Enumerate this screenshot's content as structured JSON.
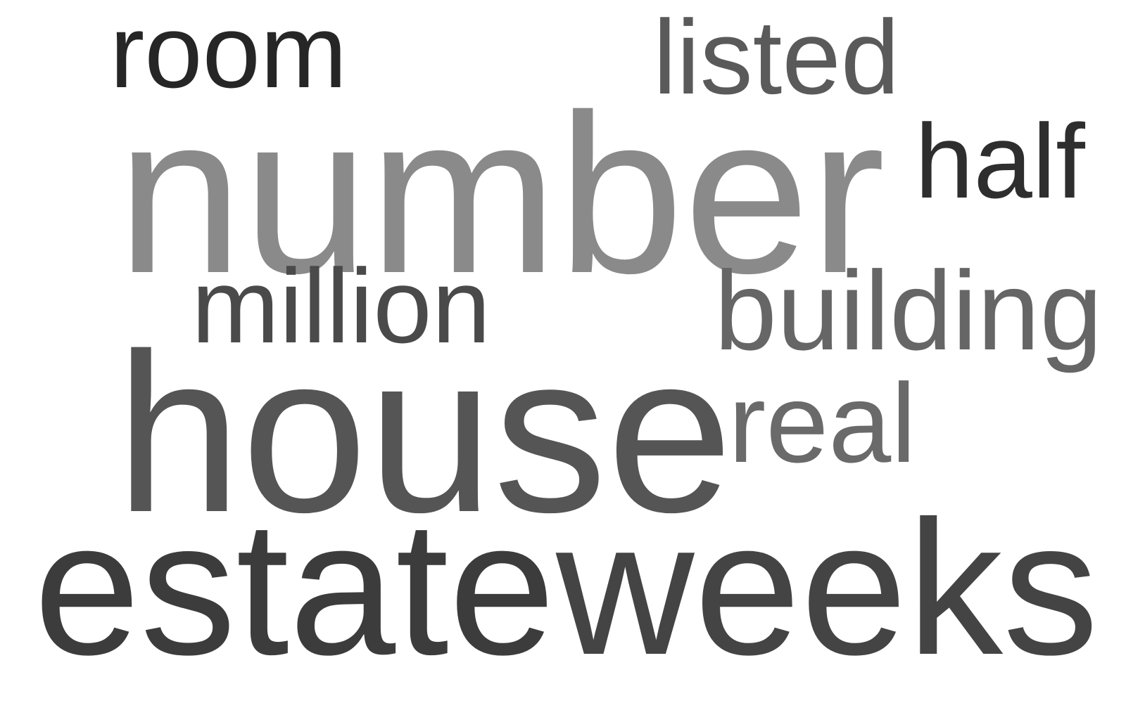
{
  "words": [
    {
      "text": "room",
      "color": "#262626"
    },
    {
      "text": "listed",
      "color": "#5a5a5a"
    },
    {
      "text": "number",
      "color": "#8a8a8a"
    },
    {
      "text": "half",
      "color": "#2e2e2e"
    },
    {
      "text": "million",
      "color": "#4a4a4a"
    },
    {
      "text": "building",
      "color": "#666666"
    },
    {
      "text": "house",
      "color": "#555555"
    },
    {
      "text": "real",
      "color": "#6a6a6a"
    },
    {
      "text": "estate",
      "color": "#3c3c3c"
    },
    {
      "text": "weeks",
      "color": "#444444"
    }
  ]
}
